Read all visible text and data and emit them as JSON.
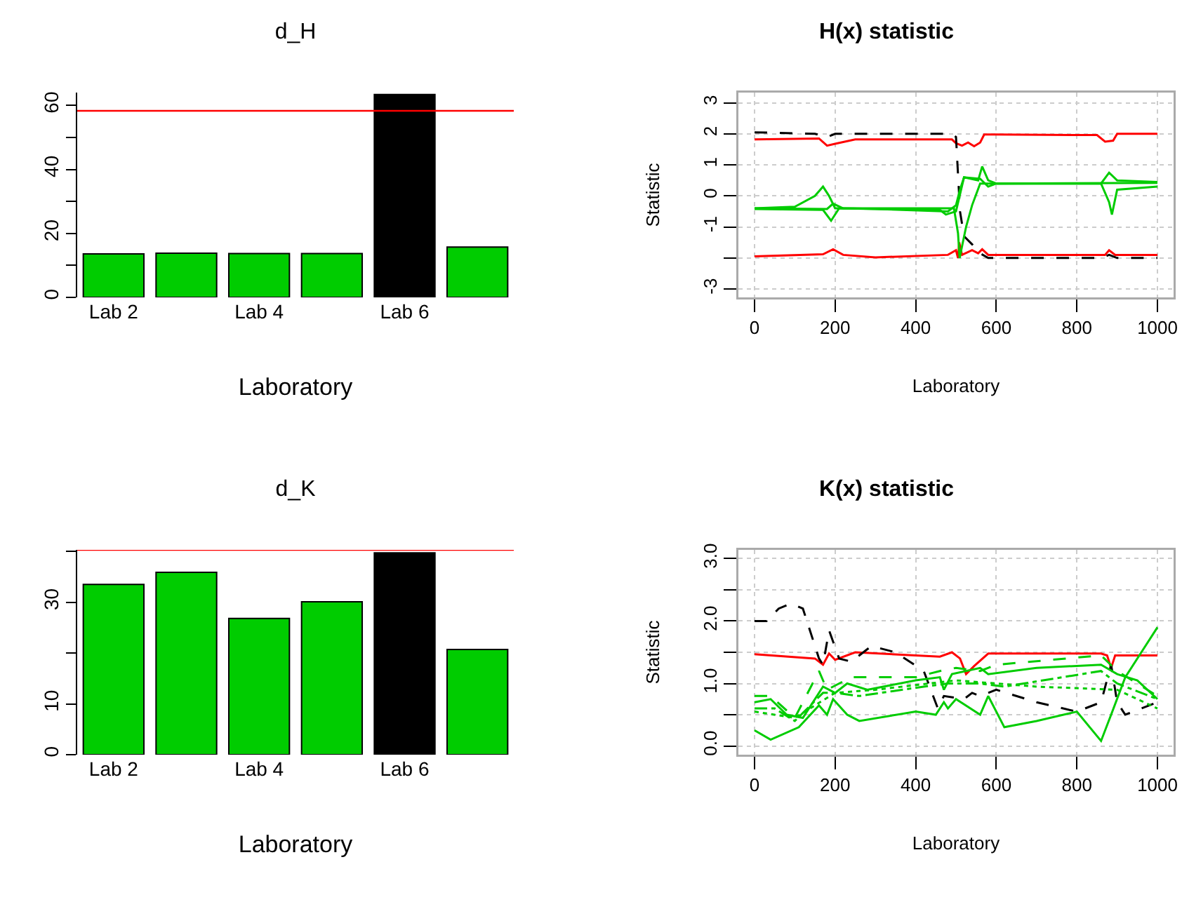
{
  "chart_data": [
    {
      "type": "bar",
      "title": "d_H",
      "xlabel": "Laboratory",
      "categories": [
        "Lab 2",
        null,
        "Lab 4",
        null,
        "Lab 6",
        null
      ],
      "values": [
        13.6,
        13.8,
        13.7,
        13.7,
        63.4,
        15.7
      ],
      "colors": [
        "#00cc00",
        "#00cc00",
        "#00cc00",
        "#00cc00",
        "#000000",
        "#00cc00"
      ],
      "ylim": [
        0,
        64
      ],
      "yticks": [
        0,
        {
          "value": 10,
          "label": null
        },
        20,
        {
          "value": 30,
          "label": null
        },
        40,
        {
          "value": 50,
          "label": null
        },
        60
      ],
      "ref_lines": [
        {
          "axis": "y",
          "value": 58.3,
          "color": "#ff0000"
        }
      ],
      "grid": false
    },
    {
      "type": "line",
      "title": "H(x) statistic",
      "xlabel": "Laboratory",
      "ylabel": "Statistic",
      "xlim": [
        -40,
        1040
      ],
      "ylim": [
        -3.27,
        3.33
      ],
      "xticks": [
        0,
        200,
        400,
        600,
        800,
        1000
      ],
      "yticks": [
        -3,
        {
          "value": -2,
          "label": null
        },
        -1,
        0,
        1,
        2,
        3
      ],
      "grid": true,
      "series": [
        {
          "color": "#ff0000",
          "line_style": "solid",
          "x": [
            0,
            160,
            180,
            200,
            250,
            490,
            500,
            515,
            530,
            545,
            560,
            570,
            600,
            850,
            870,
            890,
            900,
            1000
          ],
          "values": [
            1.82,
            1.85,
            1.62,
            1.68,
            1.82,
            1.82,
            1.7,
            1.62,
            1.72,
            1.6,
            1.72,
            1.98,
            1.98,
            1.96,
            1.75,
            1.78,
            2.0,
            2.0
          ]
        },
        {
          "color": "#ff0000",
          "line_style": "solid",
          "x": [
            0,
            170,
            195,
            220,
            300,
            480,
            500,
            505,
            508,
            515,
            540,
            555,
            565,
            580,
            870,
            880,
            895,
            1000
          ],
          "values": [
            -1.95,
            -1.88,
            -1.72,
            -1.9,
            -1.98,
            -1.9,
            -1.75,
            -2.0,
            -1.5,
            -1.9,
            -1.75,
            -1.85,
            -1.72,
            -1.9,
            -1.9,
            -1.75,
            -1.9,
            -1.9
          ]
        },
        {
          "color": "#000000",
          "line_style": "dashed",
          "x": [
            0,
            150,
            180,
            200,
            490,
            500,
            510,
            520,
            540,
            560,
            580,
            860,
            880,
            900,
            1000
          ],
          "values": [
            2.05,
            2.0,
            1.9,
            2.0,
            2.0,
            1.9,
            -0.5,
            -1.3,
            -1.56,
            -1.85,
            -2.0,
            -2.0,
            -1.9,
            -2.0,
            -2.0
          ]
        },
        {
          "color": "#00cc00",
          "line_style": "solid",
          "x": [
            0,
            100,
            150,
            170,
            185,
            200,
            480,
            495,
            505,
            509,
            525,
            540,
            560,
            600,
            860,
            880,
            900,
            1000
          ],
          "values": [
            -0.4,
            -0.35,
            0.0,
            0.3,
            0.0,
            -0.4,
            -0.4,
            -0.4,
            -1.2,
            -2.0,
            -1.0,
            -0.3,
            0.4,
            0.4,
            0.4,
            0.75,
            0.5,
            0.45
          ]
        },
        {
          "color": "#00cc00",
          "line_style": "solid",
          "x": [
            0,
            170,
            190,
            210,
            300,
            480,
            500,
            510,
            520,
            555,
            565,
            580,
            600,
            860,
            880,
            887,
            900,
            1000
          ],
          "values": [
            -0.42,
            -0.45,
            -0.8,
            -0.4,
            -0.42,
            -0.5,
            -0.3,
            0.2,
            0.6,
            0.5,
            0.95,
            0.5,
            0.4,
            0.4,
            -0.2,
            -0.6,
            0.2,
            0.3
          ]
        },
        {
          "color": "#00cc00",
          "line_style": "solid",
          "x": [
            0,
            180,
            195,
            220,
            460,
            475,
            500,
            520,
            560,
            580,
            600,
            1000
          ],
          "values": [
            -0.4,
            -0.42,
            -0.25,
            -0.4,
            -0.45,
            -0.6,
            -0.5,
            0.6,
            0.55,
            0.3,
            0.4,
            0.42
          ]
        }
      ]
    },
    {
      "type": "bar",
      "title": "d_K",
      "xlabel": "Laboratory",
      "categories": [
        "Lab 2",
        null,
        "Lab 4",
        null,
        "Lab 6",
        null
      ],
      "values": [
        33.5,
        35.9,
        26.8,
        30.1,
        39.7,
        20.7
      ],
      "colors": [
        "#00cc00",
        "#00cc00",
        "#00cc00",
        "#00cc00",
        "#000000",
        "#00cc00"
      ],
      "ylim": [
        0,
        40.3
      ],
      "yticks": [
        0,
        10,
        {
          "value": 20,
          "label": null
        },
        30,
        {
          "value": 40,
          "label": null
        }
      ],
      "ref_lines": [
        {
          "axis": "y",
          "value": 40.3,
          "color": "#ff0000"
        }
      ],
      "grid": false
    },
    {
      "type": "line",
      "title": "K(x) statistic",
      "xlabel": "Laboratory",
      "ylabel": "Statistic",
      "xlim": [
        -40,
        1040
      ],
      "ylim": [
        -0.14,
        3.14
      ],
      "xticks": [
        0,
        200,
        400,
        600,
        800,
        1000
      ],
      "yticks": [
        {
          "value": 0,
          "label": "0.0"
        },
        {
          "value": 0.5,
          "label": null
        },
        {
          "value": 1,
          "label": "1.0"
        },
        {
          "value": 1.5,
          "label": null
        },
        {
          "value": 2,
          "label": "2.0"
        },
        {
          "value": 2.5,
          "label": null
        },
        {
          "value": 3,
          "label": "3.0"
        }
      ],
      "grid": true,
      "series": [
        {
          "color": "#ff0000",
          "line_style": "solid",
          "x": [
            0,
            150,
            170,
            185,
            200,
            250,
            460,
            490,
            510,
            525,
            545,
            580,
            860,
            875,
            885,
            895,
            1000
          ],
          "values": [
            1.47,
            1.4,
            1.3,
            1.48,
            1.38,
            1.5,
            1.43,
            1.5,
            1.4,
            1.15,
            1.28,
            1.48,
            1.48,
            1.45,
            1.25,
            1.45,
            1.45
          ]
        },
        {
          "color": "#000000",
          "line_style": "dashed",
          "x": [
            0,
            30,
            60,
            90,
            120,
            160,
            170,
            185,
            210,
            240,
            290,
            350,
            420,
            455,
            470,
            520,
            540,
            560,
            600,
            700,
            800,
            860,
            885,
            900,
            920,
            1000
          ],
          "values": [
            2.0,
            2.0,
            2.2,
            2.28,
            2.2,
            1.4,
            1.3,
            1.85,
            1.4,
            1.35,
            1.6,
            1.5,
            1.2,
            0.6,
            0.8,
            0.75,
            0.85,
            0.8,
            0.9,
            0.7,
            0.55,
            0.7,
            1.3,
            0.7,
            0.5,
            0.7
          ]
        },
        {
          "color": "#00cc00",
          "line_style": "solid",
          "x": [
            0,
            40,
            80,
            120,
            170,
            200,
            230,
            280,
            400,
            460,
            470,
            490,
            560,
            580,
            700,
            860,
            900,
            950,
            1000
          ],
          "values": [
            0.7,
            0.75,
            0.5,
            0.45,
            0.95,
            0.85,
            1.0,
            0.9,
            1.05,
            1.1,
            0.9,
            1.15,
            1.25,
            1.15,
            1.25,
            1.3,
            1.15,
            1.05,
            0.75
          ]
        },
        {
          "color": "#00cc00",
          "line_style": "solid",
          "x": [
            0,
            40,
            110,
            160,
            180,
            195,
            230,
            260,
            400,
            450,
            470,
            480,
            500,
            560,
            580,
            620,
            700,
            800,
            860,
            885,
            920,
            960,
            1000
          ],
          "values": [
            0.25,
            0.1,
            0.3,
            0.65,
            0.5,
            0.75,
            0.5,
            0.4,
            0.55,
            0.5,
            0.7,
            0.6,
            0.75,
            0.5,
            0.8,
            0.3,
            0.4,
            0.55,
            0.08,
            0.5,
            1.1,
            1.5,
            1.9
          ]
        },
        {
          "color": "#00cc00",
          "line_style": "dashed",
          "x": [
            0,
            40,
            100,
            160,
            180,
            240,
            400,
            460,
            500,
            560,
            600,
            860,
            900,
            1000
          ],
          "values": [
            0.8,
            0.8,
            0.45,
            1.2,
            0.9,
            1.1,
            1.1,
            1.2,
            1.25,
            1.2,
            1.3,
            1.45,
            1.2,
            0.8
          ]
        },
        {
          "color": "#00cc00",
          "line_style": "dashdot",
          "x": [
            0,
            50,
            100,
            170,
            200,
            260,
            420,
            480,
            560,
            620,
            860,
            900,
            1000
          ],
          "values": [
            0.6,
            0.6,
            0.4,
            0.85,
            0.85,
            0.8,
            0.95,
            1.0,
            1.0,
            0.95,
            1.2,
            1.0,
            0.75
          ]
        },
        {
          "color": "#00cc00",
          "line_style": "dotted",
          "x": [
            0,
            100,
            200,
            300,
            500,
            700,
            900,
            1000
          ],
          "values": [
            0.55,
            0.45,
            0.85,
            0.9,
            1.05,
            0.95,
            0.9,
            0.6
          ]
        }
      ]
    }
  ]
}
